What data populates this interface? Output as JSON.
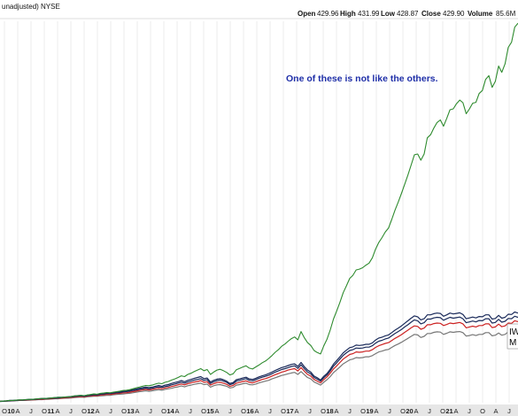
{
  "header": {
    "title": "unadjusted)  NYSE",
    "open_label": "Open",
    "open_value": "429.96",
    "high_label": "High",
    "high_value": "431.99",
    "low_label": "Low",
    "low_value": "428.87",
    "close_label": "Close",
    "close_value": "429.90",
    "volume_label": "Volume",
    "volume_value": "85.6M"
  },
  "annotation": {
    "text": "One of these is not like the others.",
    "color": "#1f2fa8"
  },
  "side_labels": [
    "IW",
    "M"
  ],
  "colors": {
    "green": "#2e8b2e",
    "navy": "#1a2a5a",
    "red": "#cc2222",
    "gray": "#777777",
    "grid": "#d8d8d8",
    "axis_bg": "#e6e6e6"
  },
  "chart_data": {
    "type": "line",
    "x_axis": {
      "month_ticks": [
        "O",
        "A",
        "J",
        "O",
        "A",
        "J",
        "O",
        "A",
        "J",
        "O",
        "A",
        "J",
        "O",
        "A",
        "J",
        "O",
        "A",
        "J",
        "O",
        "A",
        "J",
        "O",
        "A",
        "J",
        "O",
        "A",
        "J",
        "O",
        "A",
        "J",
        "O",
        "A",
        "J",
        "O",
        "A",
        "J",
        "O",
        "A",
        "J"
      ],
      "year_ticks": [
        "10",
        "11",
        "12",
        "13",
        "14",
        "15",
        "16",
        "17",
        "18",
        "19",
        "20",
        "21"
      ]
    },
    "grid": true,
    "series": [
      {
        "color": "green",
        "values": [
          5,
          6,
          7,
          8,
          8,
          9,
          10,
          10,
          11,
          12,
          12,
          13,
          14,
          15,
          15,
          16,
          17,
          18,
          19,
          19,
          20,
          21,
          22,
          24,
          25,
          26,
          25,
          27,
          29,
          31,
          30,
          33,
          34,
          36,
          35,
          37,
          39,
          41,
          43,
          44,
          46,
          49,
          52,
          55,
          58,
          61,
          60,
          62,
          66,
          69,
          67,
          72,
          75,
          80,
          84,
          89,
          95,
          92,
          100,
          104,
          110,
          115,
          120,
          113,
          117,
          100,
          108,
          115,
          118,
          113,
          107,
          98,
          102,
          116,
          121,
          126,
          130,
          122,
          119,
          126,
          133,
          141,
          147,
          156,
          166,
          178,
          187,
          199,
          207,
          217,
          226,
          232,
          222,
          251,
          229,
          212,
          202,
          184,
          177,
          172,
          200,
          224,
          256,
          295,
          324,
          354,
          388,
          412,
          438,
          449,
          468,
          471,
          476,
          485,
          492,
          511,
          541,
          565,
          582,
          602,
          616,
          646,
          679,
          707,
          738,
          770,
          803,
          838,
          874,
          877,
          855,
          877,
          934,
          945,
          968,
          988,
          997,
          975,
          1003,
          1033,
          1036,
          1054,
          1067,
          1058,
          1019,
          1036,
          1056,
          1059,
          1090,
          1101,
          1140,
          1153,
          1112,
          1133,
          1187,
          1165,
          1195,
          1253,
          1271,
          1324,
          1338
        ]
      },
      {
        "color": "navy",
        "values": [
          5,
          6,
          7,
          8,
          8,
          9,
          10,
          10,
          11,
          12,
          12,
          13,
          14,
          15,
          15,
          16,
          17,
          18,
          19,
          19,
          20,
          21,
          22,
          24,
          25,
          26,
          24,
          27,
          28,
          30,
          29,
          32,
          33,
          35,
          34,
          36,
          38,
          39,
          41,
          42,
          44,
          46,
          48,
          51,
          53,
          55,
          53,
          55,
          58,
          61,
          58,
          62,
          64,
          68,
          71,
          74,
          78,
          74,
          79,
          82,
          86,
          89,
          92,
          85,
          87,
          73,
          79,
          83,
          85,
          81,
          76,
          68,
          71,
          81,
          84,
          87,
          90,
          84,
          82,
          86,
          91,
          95,
          98,
          103,
          108,
          114,
          119,
          124,
          127,
          131,
          135,
          137,
          128,
          142,
          127,
          115,
          108,
          94,
          88,
          80,
          93,
          103,
          118,
          136,
          149,
          162,
          176,
          185,
          194,
          197,
          203,
          202,
          203,
          206,
          206,
          211,
          221,
          228,
          231,
          236,
          239,
          247,
          256,
          263,
          271,
          280,
          289,
          298,
          306,
          303,
          292,
          296,
          310,
          310,
          314,
          316,
          315,
          305,
          310,
          316,
          313,
          315,
          317,
          311,
          296,
          299,
          302,
          299,
          304,
          303,
          310,
          310,
          295,
          297,
          308,
          298,
          301,
          312,
          311,
          320,
          316
        ]
      },
      {
        "color": "red",
        "values": [
          5,
          5,
          6,
          7,
          7,
          8,
          8,
          9,
          9,
          10,
          10,
          11,
          12,
          12,
          13,
          14,
          14,
          15,
          16,
          16,
          17,
          18,
          19,
          20,
          21,
          22,
          21,
          23,
          24,
          25,
          25,
          27,
          28,
          29,
          29,
          31,
          32,
          33,
          35,
          35,
          37,
          39,
          41,
          43,
          45,
          47,
          45,
          47,
          49,
          51,
          49,
          52,
          54,
          57,
          60,
          63,
          66,
          63,
          67,
          70,
          73,
          75,
          78,
          72,
          74,
          62,
          67,
          71,
          72,
          69,
          65,
          58,
          61,
          69,
          72,
          75,
          77,
          72,
          70,
          74,
          78,
          82,
          85,
          89,
          94,
          99,
          103,
          108,
          111,
          115,
          118,
          120,
          112,
          124,
          111,
          100,
          94,
          82,
          76,
          70,
          81,
          91,
          104,
          119,
          130,
          142,
          154,
          162,
          170,
          173,
          179,
          178,
          179,
          182,
          182,
          187,
          195,
          201,
          205,
          209,
          212,
          219,
          227,
          233,
          240,
          248,
          256,
          264,
          271,
          269,
          259,
          263,
          275,
          275,
          279,
          281,
          280,
          272,
          276,
          281,
          279,
          281,
          283,
          278,
          264,
          267,
          270,
          267,
          272,
          272,
          278,
          278,
          265,
          267,
          277,
          268,
          271,
          281,
          280,
          289,
          286
        ]
      },
      {
        "color": "gray",
        "values": [
          5,
          5,
          6,
          6,
          7,
          7,
          8,
          8,
          9,
          9,
          10,
          10,
          11,
          11,
          12,
          12,
          13,
          14,
          14,
          15,
          16,
          16,
          17,
          18,
          19,
          20,
          19,
          21,
          22,
          23,
          23,
          24,
          25,
          26,
          26,
          28,
          29,
          30,
          31,
          32,
          33,
          35,
          37,
          39,
          40,
          42,
          40,
          42,
          44,
          46,
          44,
          47,
          49,
          51,
          54,
          56,
          59,
          56,
          60,
          62,
          65,
          67,
          69,
          64,
          66,
          55,
          60,
          63,
          64,
          61,
          58,
          52,
          54,
          62,
          64,
          67,
          69,
          64,
          63,
          66,
          70,
          73,
          76,
          79,
          84,
          88,
          92,
          96,
          99,
          102,
          105,
          107,
          100,
          110,
          99,
          89,
          84,
          73,
          68,
          62,
          72,
          81,
          92,
          106,
          116,
          126,
          137,
          144,
          151,
          154,
          159,
          158,
          159,
          162,
          162,
          166,
          173,
          179,
          182,
          186,
          188,
          195,
          202,
          207,
          213,
          220,
          227,
          234,
          241,
          239,
          230,
          234,
          244,
          244,
          248,
          250,
          249,
          241,
          245,
          250,
          248,
          250,
          251,
          247,
          235,
          237,
          240,
          237,
          241,
          241,
          247,
          247,
          236,
          238,
          246,
          238,
          241,
          250,
          249,
          257,
          254
        ]
      },
      {
        "color": "navy",
        "values": [
          4,
          5,
          6,
          7,
          7,
          8,
          9,
          9,
          10,
          11,
          11,
          12,
          13,
          14,
          14,
          15,
          16,
          16,
          17,
          18,
          19,
          20,
          21,
          22,
          23,
          24,
          23,
          25,
          26,
          28,
          27,
          30,
          31,
          32,
          32,
          34,
          35,
          36,
          38,
          39,
          41,
          43,
          45,
          47,
          49,
          51,
          49,
          51,
          54,
          56,
          54,
          57,
          59,
          63,
          66,
          69,
          72,
          69,
          73,
          76,
          80,
          82,
          85,
          79,
          81,
          68,
          74,
          78,
          80,
          76,
          72,
          64,
          67,
          76,
          79,
          82,
          85,
          79,
          77,
          81,
          86,
          90,
          93,
          97,
          102,
          108,
          112,
          117,
          120,
          124,
          128,
          130,
          121,
          134,
          120,
          108,
          102,
          89,
          83,
          76,
          88,
          98,
          112,
          129,
          141,
          154,
          167,
          176,
          184,
          187,
          193,
          192,
          193,
          196,
          196,
          201,
          210,
          217,
          220,
          225,
          228,
          236,
          244,
          251,
          258,
          267,
          275,
          284,
          292,
          289,
          278,
          282,
          295,
          295,
          299,
          301,
          300,
          291,
          296,
          301,
          298,
          300,
          302,
          296,
          282,
          285,
          288,
          285,
          290,
          289,
          296,
          296,
          281,
          283,
          294,
          284,
          287,
          297,
          296,
          305,
          301
        ]
      }
    ]
  }
}
